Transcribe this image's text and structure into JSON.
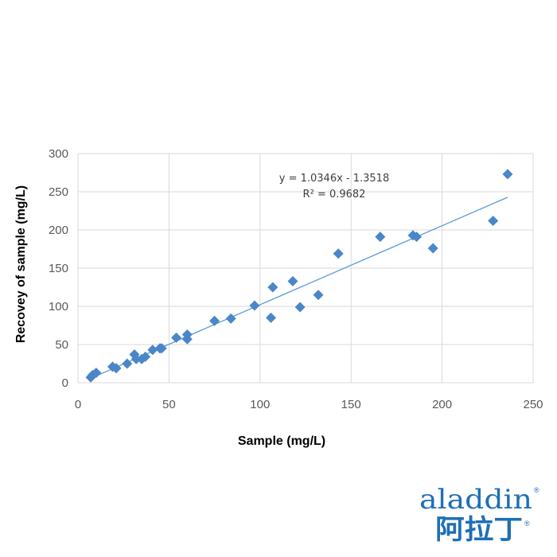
{
  "chart_data": {
    "type": "scatter",
    "title": "",
    "xlabel": "Sample (mg/L)",
    "ylabel": "Recovey of sample (mg/L)",
    "xlim": [
      0,
      250
    ],
    "ylim": [
      0,
      300
    ],
    "xticks": [
      0,
      50,
      100,
      150,
      200,
      250
    ],
    "yticks": [
      0,
      50,
      100,
      150,
      200,
      250,
      300
    ],
    "grid": true,
    "legend": "none",
    "marker_color": "#4a86c8",
    "trendline_color": "#5b9bd5",
    "points": [
      {
        "x": 7,
        "y": 7
      },
      {
        "x": 8,
        "y": 10
      },
      {
        "x": 10,
        "y": 13
      },
      {
        "x": 19,
        "y": 21
      },
      {
        "x": 21,
        "y": 19
      },
      {
        "x": 27,
        "y": 25
      },
      {
        "x": 31,
        "y": 37
      },
      {
        "x": 32,
        "y": 31
      },
      {
        "x": 35,
        "y": 31
      },
      {
        "x": 37,
        "y": 34
      },
      {
        "x": 41,
        "y": 43
      },
      {
        "x": 45,
        "y": 45
      },
      {
        "x": 46,
        "y": 45
      },
      {
        "x": 54,
        "y": 59
      },
      {
        "x": 60,
        "y": 57
      },
      {
        "x": 60,
        "y": 63
      },
      {
        "x": 75,
        "y": 81
      },
      {
        "x": 84,
        "y": 84
      },
      {
        "x": 97,
        "y": 101
      },
      {
        "x": 106,
        "y": 85
      },
      {
        "x": 107,
        "y": 125
      },
      {
        "x": 118,
        "y": 133
      },
      {
        "x": 122,
        "y": 99
      },
      {
        "x": 132,
        "y": 115
      },
      {
        "x": 143,
        "y": 169
      },
      {
        "x": 166,
        "y": 191
      },
      {
        "x": 184,
        "y": 193
      },
      {
        "x": 186,
        "y": 191
      },
      {
        "x": 195,
        "y": 176
      },
      {
        "x": 228,
        "y": 212
      },
      {
        "x": 236,
        "y": 273
      }
    ],
    "trendline": {
      "slope": 1.0346,
      "intercept": -1.3518,
      "x_range": [
        7,
        236
      ],
      "equation": "y = 1.0346x - 1.3518",
      "r_squared": "R² = 0.9682"
    }
  },
  "logo": {
    "latin": "aladdin",
    "chinese": "阿拉丁",
    "registered": "®"
  }
}
